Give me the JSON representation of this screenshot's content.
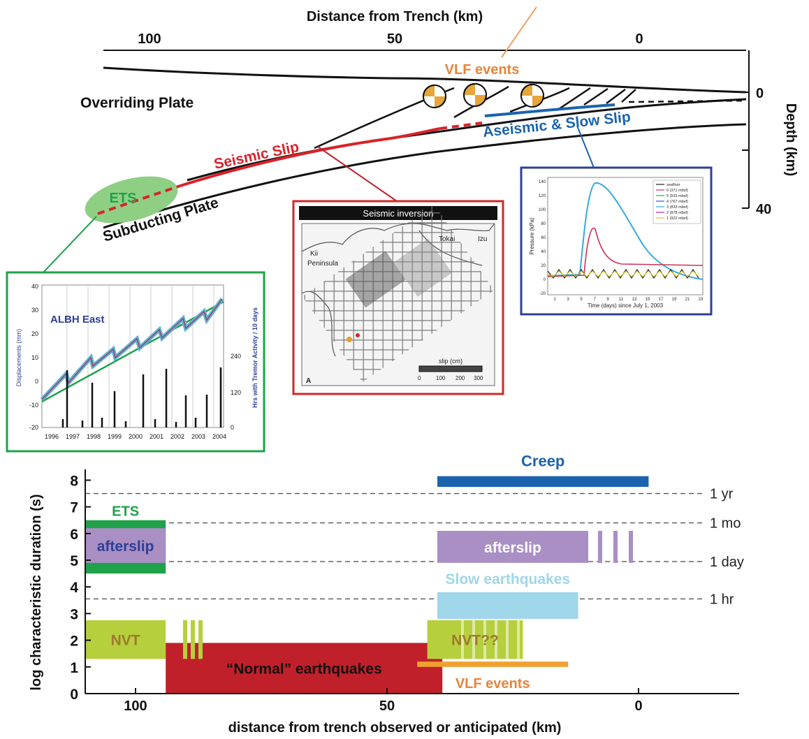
{
  "top": {
    "title": "Distance from Trench (km)",
    "x_ticks": [
      "100",
      "50",
      "0"
    ],
    "depth_label": "Depth (km)",
    "depth_ticks": [
      "0",
      "40"
    ],
    "labels": {
      "overriding": "Overriding Plate",
      "subducting": "Subducting Plate",
      "seismic_slip": "Seismic Slip",
      "aseismic": "Aseismic & Slow Slip",
      "vlf": "VLF events",
      "ets": "ETS"
    }
  },
  "gps_panel": {
    "title": "ALBH East",
    "ylabel_left": "Displacements (mm)",
    "ylabel_right": "Hrs with Tremor Activity / 10 days",
    "y_ticks": [
      "40",
      "30",
      "20",
      "10",
      "0",
      "-10",
      "-20"
    ],
    "right_ticks": [
      "240",
      "120",
      "0"
    ],
    "x_ticks": [
      "1996",
      "1997",
      "1998",
      "1999",
      "2000",
      "2001",
      "2002",
      "2003",
      "2004"
    ]
  },
  "seismic_panel": {
    "title": "Seismic inversion",
    "labels": {
      "kii": "Kii",
      "peninsula": "Peninsula",
      "tokai": "Tokai",
      "izu": "Izu",
      "slip_label": "slip (cm)",
      "panel_letter": "A"
    },
    "scale_ticks": [
      "0",
      "100",
      "200",
      "300"
    ]
  },
  "pressure_panel": {
    "ylabel": "Pressure (kPa)",
    "xlabel": "Time (days) since July 1, 2003",
    "y_ticks": [
      "140",
      "120",
      "100",
      "80",
      "60",
      "40",
      "20",
      "0",
      "-20"
    ],
    "x_ticks": [
      "1",
      "3",
      "5",
      "7",
      "9",
      "11",
      "13",
      "15",
      "17",
      "19",
      "21",
      "23"
    ],
    "legend": [
      {
        "label": "seafloor",
        "color": "#222222"
      },
      {
        "label": "6 (371 mbsf)",
        "color": "#cc3355"
      },
      {
        "label": "5 (533 mbsf)",
        "color": "#22aa66"
      },
      {
        "label": "4 (767 mbsf)",
        "color": "#3355cc"
      },
      {
        "label": "3 (833 mbsf)",
        "color": "#33aadd"
      },
      {
        "label": "2 (878 mbsf)",
        "color": "#aa3399"
      },
      {
        "label": "1 (922 mbsf)",
        "color": "#ddcc22"
      }
    ]
  },
  "chart_data": {
    "type": "bar",
    "ylabel": "log characteristic duration (s)",
    "xlabel": "distance from trench observed or anticipated (km)",
    "x_ticks": [
      "100",
      "50",
      "0"
    ],
    "y_ticks": [
      "0",
      "1",
      "2",
      "3",
      "4",
      "5",
      "6",
      "7",
      "8"
    ],
    "xlim": [
      110,
      -20
    ],
    "ylim": [
      0,
      8.3
    ],
    "reference_lines": [
      {
        "label": "1 yr",
        "y": 7.5
      },
      {
        "label": "1 mo",
        "y": 6.4
      },
      {
        "label": "1 day",
        "y": 4.95
      },
      {
        "label": "1 hr",
        "y": 3.55
      }
    ],
    "ranges": [
      {
        "name": "Creep",
        "x": [
          40,
          -2
        ],
        "y": [
          7.75,
          8.15
        ],
        "color": "#1b63ad"
      },
      {
        "name": "ETS",
        "x": [
          110,
          94
        ],
        "y": [
          4.5,
          6.5
        ],
        "color": "#1fa24a"
      },
      {
        "name": "afterslip",
        "x": [
          110,
          94
        ],
        "y": [
          4.9,
          6.2
        ],
        "color": "#a98fc4"
      },
      {
        "name": "afterslip",
        "x": [
          40,
          10
        ],
        "y": [
          4.9,
          6.1
        ],
        "color": "#a98fc4"
      },
      {
        "name": "Slow earthquakes",
        "x": [
          40,
          12
        ],
        "y": [
          2.8,
          3.8
        ],
        "color": "#9fd6ea"
      },
      {
        "name": "NVT",
        "x": [
          110,
          94
        ],
        "y": [
          1.3,
          2.75
        ],
        "color": "#b6cf3c"
      },
      {
        "name": "“Normal” earthquakes",
        "x": [
          94,
          39
        ],
        "y": [
          0,
          1.9
        ],
        "color": "#c0202a"
      },
      {
        "name": "NVT??",
        "x": [
          42,
          23
        ],
        "y": [
          1.3,
          2.75
        ],
        "color": "#b6cf3c"
      },
      {
        "name": "VLF events",
        "x": [
          44,
          14
        ],
        "y": [
          1.0,
          1.2
        ],
        "color": "#f0a030"
      }
    ]
  }
}
